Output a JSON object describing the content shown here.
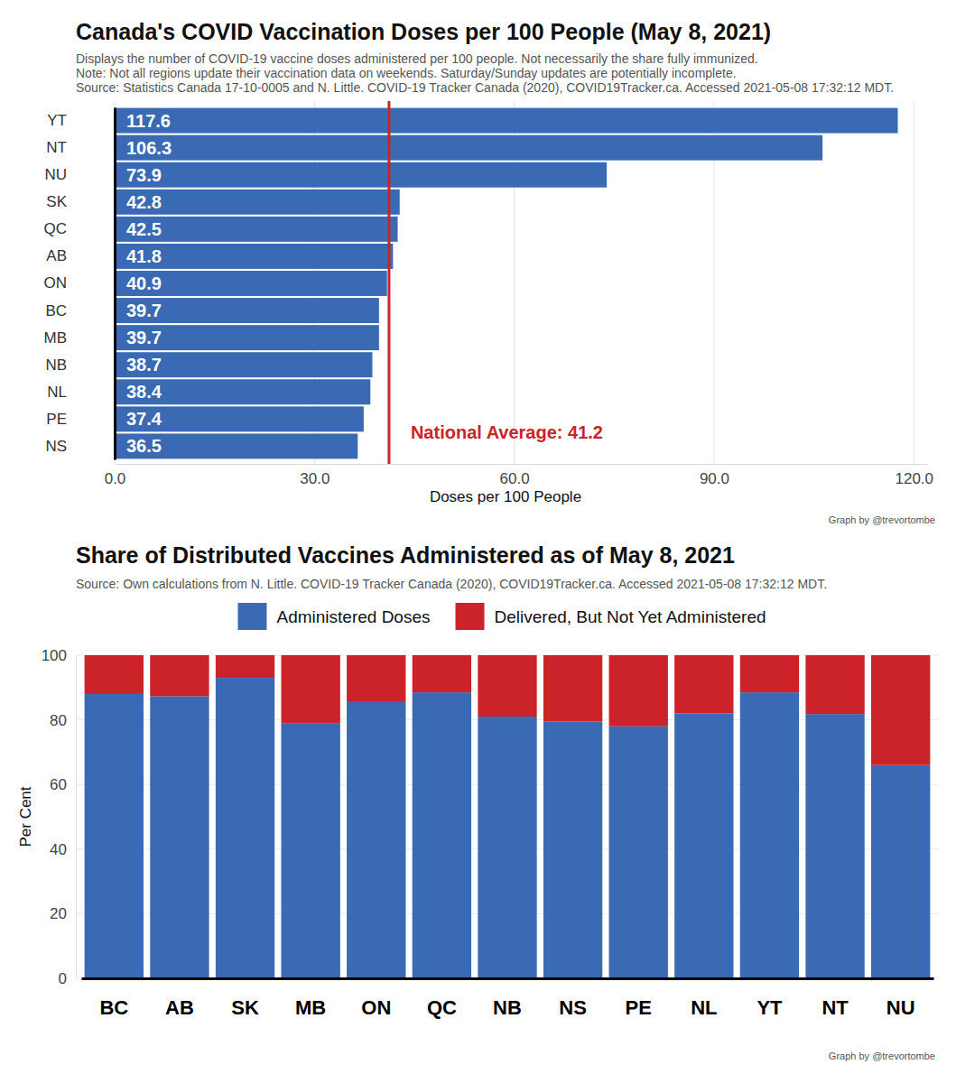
{
  "chart_data": [
    {
      "type": "bar",
      "orientation": "horizontal",
      "title": "Canada's COVID Vaccination Doses per 100 People (May 8, 2021)",
      "subtitle": [
        "Displays the number of COVID-19 vaccine doses administered per 100 people. Not necessarily the share fully immunized.",
        "Note: Not all regions update their vaccination data on weekends. Saturday/Sunday updates are potentially incomplete.",
        "Source: Statistics Canada 17-10-0005 and N. Little. COVID-19 Tracker Canada (2020), COVID19Tracker.ca. Accessed 2021-05-08 17:32:12 MDT."
      ],
      "x_label": "Doses per 100 People",
      "caption": "Graph by @trevortombe",
      "categories": [
        "YT",
        "NT",
        "NU",
        "SK",
        "QC",
        "AB",
        "ON",
        "BC",
        "MB",
        "NB",
        "NL",
        "PE",
        "NS"
      ],
      "values": [
        117.6,
        106.3,
        73.9,
        42.8,
        42.5,
        41.8,
        40.9,
        39.7,
        39.7,
        38.7,
        38.4,
        37.4,
        36.5
      ],
      "color": "#3a6ab3",
      "xlim": [
        0,
        122
      ],
      "xticks": [
        {
          "value": 0,
          "label": "0.0"
        },
        {
          "value": 30,
          "label": "30.0"
        },
        {
          "value": 60,
          "label": "60.0"
        },
        {
          "value": 90,
          "label": "90.0"
        },
        {
          "value": 120,
          "label": "120.0"
        }
      ],
      "grid": true,
      "data_labels": true,
      "reference_line": {
        "value": 41.2,
        "label": "National Average: 41.2"
      }
    },
    {
      "type": "bar",
      "stacked": true,
      "title": "Share of Distributed Vaccines Administered as of May 8, 2021",
      "subtitle": "Source: Own calculations from N. Little. COVID-19 Tracker Canada (2020), COVID19Tracker.ca. Accessed 2021-05-08 17:32:12 MDT.",
      "y_label": "Per Cent",
      "caption": "Graph by @trevortombe",
      "categories": [
        "BC",
        "AB",
        "SK",
        "MB",
        "ON",
        "QC",
        "NB",
        "NS",
        "PE",
        "NL",
        "YT",
        "NT",
        "NU"
      ],
      "series": [
        {
          "name": "Administered Doses",
          "color": "#3a6ab3",
          "values": [
            88,
            87.3,
            93,
            79,
            85.5,
            88.5,
            81,
            79.5,
            78,
            82,
            88.5,
            81.8,
            66
          ]
        },
        {
          "name": "Delivered, But Not Yet Administered",
          "color": "#cc2229",
          "values": [
            12,
            12.7,
            7,
            21,
            14.5,
            11.5,
            19,
            20.5,
            22,
            18,
            11.5,
            18.2,
            34
          ]
        }
      ],
      "ylim": [
        0,
        100
      ],
      "yticks": [
        0,
        20,
        40,
        60,
        80,
        100
      ],
      "grid": true,
      "legend": "top"
    }
  ]
}
